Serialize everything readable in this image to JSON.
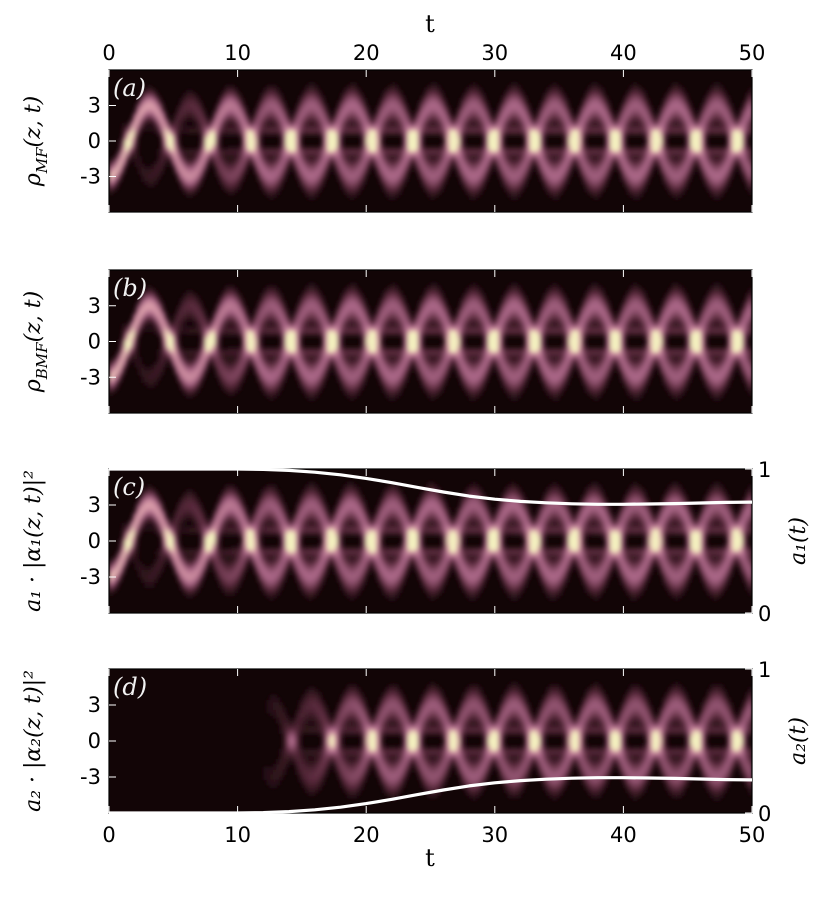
{
  "chart_data": [
    {
      "type": "heatmap",
      "panel_label": "(a)",
      "ylabel": "ρ_MF(z, t)",
      "ylabel_main": "ρ",
      "ylabel_sub": "MF",
      "ylabel_tail": "(z, t)",
      "top_xlabel": "t",
      "x_ticks": [
        0,
        10,
        20,
        30,
        40,
        50
      ],
      "y_ticks": [
        3,
        0,
        -3
      ],
      "xlim": [
        0,
        50
      ],
      "ylim": [
        -6,
        6
      ],
      "colormap": [
        "#120506",
        "#5e2d40",
        "#a86585",
        "#d89aa8",
        "#f4f0bf"
      ],
      "density": {
        "amplitude": 3,
        "period": 6.3,
        "mode_shift": 3.15
      }
    },
    {
      "type": "heatmap",
      "panel_label": "(b)",
      "ylabel": "ρ_BMF(z, t)",
      "ylabel_main": "ρ",
      "ylabel_sub": "BMF",
      "ylabel_tail": "(z, t)",
      "y_ticks": [
        3,
        0,
        -3
      ],
      "xlim": [
        0,
        50
      ],
      "ylim": [
        -6,
        6
      ],
      "density": {
        "amplitude": 3,
        "period": 6.3,
        "mode_shift": 3.15
      }
    },
    {
      "type": "heatmap",
      "panel_label": "(c)",
      "ylabel": "a₁ · |α₁(z, t)|²",
      "right_ylabel": "a₁(t)",
      "y_ticks": [
        3,
        0,
        -3
      ],
      "right_y_ticks": [
        1,
        0
      ],
      "right_ylim": [
        0,
        1
      ],
      "xlim": [
        0,
        50
      ],
      "ylim": [
        -6,
        6
      ],
      "line": {
        "name": "a1",
        "color": "#ffffff",
        "x": [
          0,
          2,
          4,
          6,
          8,
          10,
          12,
          14,
          16,
          18,
          20,
          22,
          24,
          26,
          28,
          30,
          32,
          34,
          36,
          38,
          40,
          42,
          44,
          46,
          48,
          50
        ],
        "y": [
          1.0,
          1.0,
          1.0,
          1.0,
          1.0,
          1.0,
          0.997,
          0.99,
          0.978,
          0.96,
          0.935,
          0.905,
          0.872,
          0.84,
          0.812,
          0.79,
          0.775,
          0.765,
          0.758,
          0.755,
          0.755,
          0.757,
          0.76,
          0.764,
          0.768,
          0.77
        ]
      }
    },
    {
      "type": "heatmap",
      "panel_label": "(d)",
      "ylabel": "a₂ · |α₂(z, t)|²",
      "right_ylabel": "a₂(t)",
      "xlabel": "t",
      "x_ticks": [
        0,
        10,
        20,
        30,
        40,
        50
      ],
      "y_ticks": [
        3,
        0,
        -3
      ],
      "right_y_ticks": [
        1,
        0
      ],
      "right_ylim": [
        0,
        1
      ],
      "xlim": [
        0,
        50
      ],
      "ylim": [
        -6,
        6
      ],
      "line": {
        "name": "a2",
        "color": "#ffffff",
        "x": [
          0,
          2,
          4,
          6,
          8,
          10,
          12,
          14,
          16,
          18,
          20,
          22,
          24,
          26,
          28,
          30,
          32,
          34,
          36,
          38,
          40,
          42,
          44,
          46,
          48,
          50
        ],
        "y": [
          0.0,
          0.0,
          0.0,
          0.0,
          0.0,
          0.0,
          0.003,
          0.01,
          0.022,
          0.04,
          0.065,
          0.095,
          0.128,
          0.16,
          0.188,
          0.21,
          0.225,
          0.235,
          0.242,
          0.245,
          0.245,
          0.243,
          0.24,
          0.236,
          0.232,
          0.23
        ]
      }
    }
  ]
}
